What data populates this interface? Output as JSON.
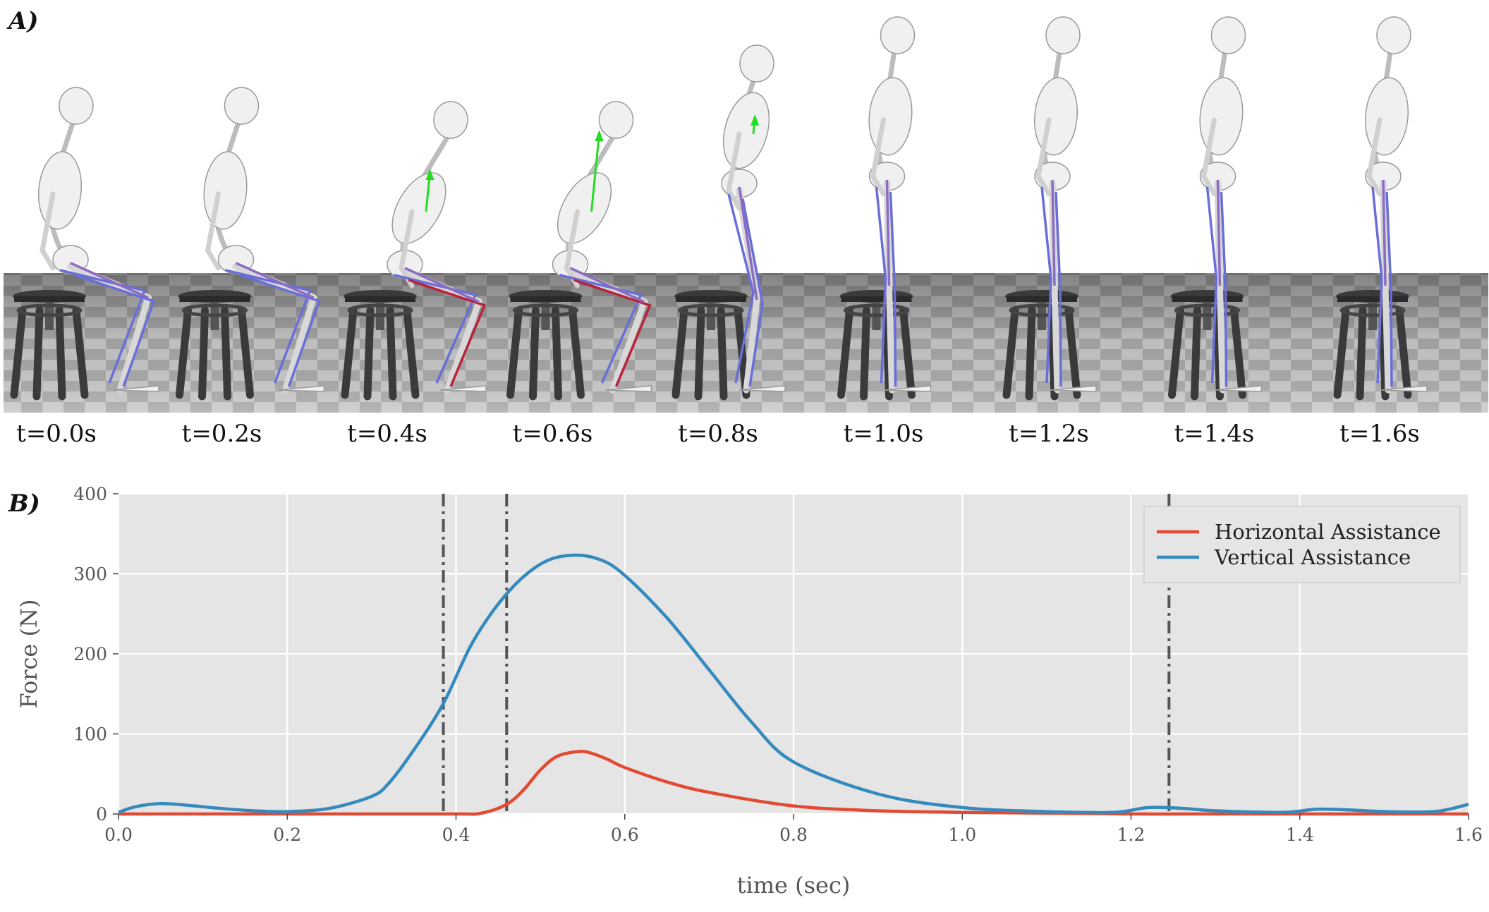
{
  "panel_a": {
    "label": "A)",
    "frames": [
      {
        "caption": "t=0.0s",
        "pose": "sit",
        "arrow": 0
      },
      {
        "caption": "t=0.2s",
        "pose": "sit",
        "arrow": 0
      },
      {
        "caption": "t=0.4s",
        "pose": "lean",
        "arrow": 0.5
      },
      {
        "caption": "t=0.6s",
        "pose": "lean",
        "arrow": 1.0
      },
      {
        "caption": "t=0.8s",
        "pose": "rise",
        "arrow": 0.2
      },
      {
        "caption": "t=1.0s",
        "pose": "stand",
        "arrow": 0
      },
      {
        "caption": "t=1.2s",
        "pose": "stand",
        "arrow": 0
      },
      {
        "caption": "t=1.4s",
        "pose": "stand",
        "arrow": 0
      },
      {
        "caption": "t=1.6s",
        "pose": "stand",
        "arrow": 0
      }
    ]
  },
  "panel_b": {
    "label": "B)"
  },
  "chart_data": {
    "type": "line",
    "title": "",
    "xlabel": "time (sec)",
    "ylabel": "Force (N)",
    "xlim": [
      0.0,
      1.6
    ],
    "ylim": [
      0,
      400
    ],
    "xticks": [
      "0.0",
      "0.2",
      "0.4",
      "0.6",
      "0.8",
      "1.0",
      "1.2",
      "1.4",
      "1.6"
    ],
    "yticks": [
      "0",
      "100",
      "200",
      "300",
      "400"
    ],
    "grid": true,
    "legend_position": "top-right",
    "vertical_lines": [
      0.385,
      0.46,
      1.245
    ],
    "series": [
      {
        "name": "Horizontal Assistance",
        "color": "#e24a33",
        "x": [
          0.0,
          0.1,
          0.2,
          0.3,
          0.4,
          0.43,
          0.46,
          0.48,
          0.5,
          0.52,
          0.545,
          0.56,
          0.58,
          0.6,
          0.65,
          0.7,
          0.8,
          0.9,
          1.0,
          1.1,
          1.2,
          1.3,
          1.4,
          1.5,
          1.6
        ],
        "values": [
          0,
          0,
          0,
          0,
          0,
          1,
          12,
          30,
          55,
          72,
          78,
          76,
          68,
          58,
          40,
          27,
          10,
          4,
          2,
          1,
          0,
          0,
          0,
          0,
          0
        ]
      },
      {
        "name": "Vertical Assistance",
        "color": "#348abd",
        "x": [
          0.0,
          0.02,
          0.05,
          0.08,
          0.12,
          0.16,
          0.2,
          0.25,
          0.3,
          0.32,
          0.35,
          0.385,
          0.42,
          0.46,
          0.5,
          0.535,
          0.57,
          0.6,
          0.65,
          0.7,
          0.75,
          0.8,
          0.9,
          1.0,
          1.1,
          1.18,
          1.22,
          1.26,
          1.3,
          1.38,
          1.42,
          1.46,
          1.5,
          1.56,
          1.6
        ],
        "values": [
          2,
          9,
          13,
          11,
          7,
          4,
          3,
          7,
          22,
          38,
          80,
          138,
          215,
          275,
          312,
          323,
          318,
          298,
          245,
          180,
          115,
          65,
          25,
          8,
          3,
          2,
          8,
          7,
          4,
          2,
          6,
          5,
          3,
          3,
          12
        ]
      }
    ]
  }
}
